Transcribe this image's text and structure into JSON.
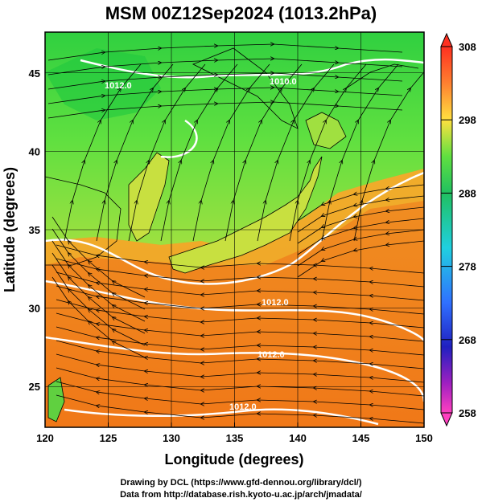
{
  "title": "MSM 00Z12Sep2024 (1013.2hPa)",
  "map": {
    "lon_range": [
      120,
      150
    ],
    "lat_range": [
      22.4,
      47.6
    ],
    "x_ticks": [
      "120",
      "125",
      "130",
      "135",
      "140",
      "145",
      "150"
    ],
    "y_ticks": [
      "25",
      "30",
      "35",
      "40",
      "45"
    ],
    "xlabel": "Longitude (degrees)",
    "ylabel": "Latitude  (degrees)",
    "grid": true,
    "isobar_labels": [
      "1010.0",
      "1012.0",
      "1012.0",
      "1012.0",
      "1012.0"
    ]
  },
  "colorbar": {
    "ticks": [
      "308",
      "298",
      "288",
      "278",
      "268",
      "258"
    ],
    "range": [
      258,
      308
    ]
  },
  "credits": {
    "line1": "Drawing by DCL (https://www.gfd-dennou.org/library/dcl/)",
    "line2": "Data from http://database.rish.kyoto-u.ac.jp/arch/jmadata/"
  }
}
